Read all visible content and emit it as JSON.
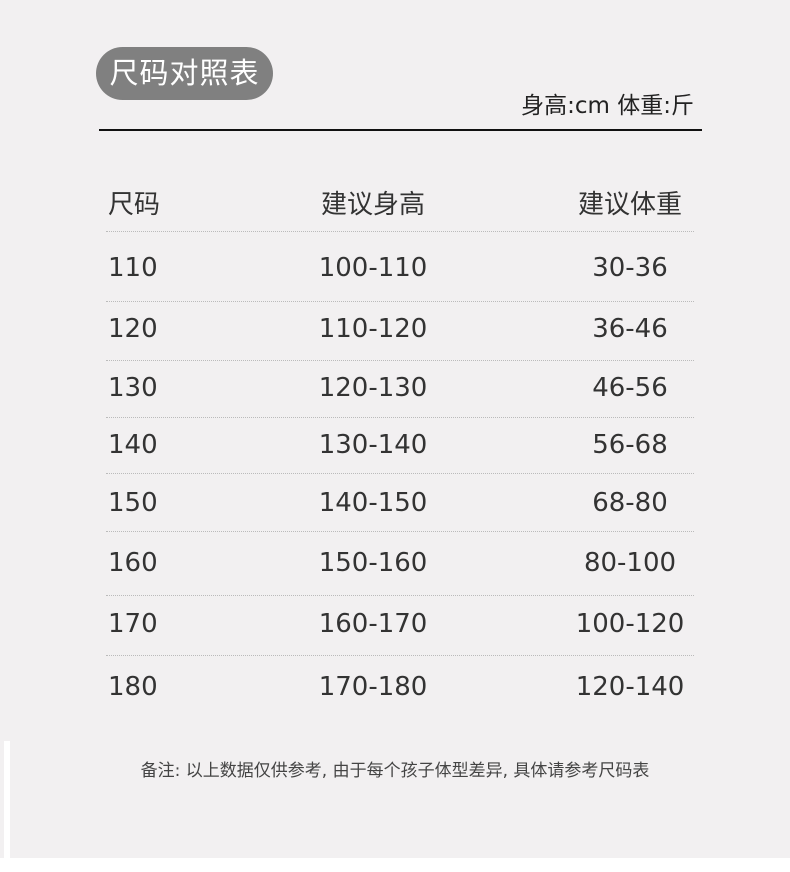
{
  "title": "尺码对照表",
  "units": "身高:cm 体重:斤",
  "table": {
    "headers": [
      "尺码",
      "建议身高",
      "建议体重"
    ],
    "rows": [
      [
        "110",
        "100-110",
        "30-36"
      ],
      [
        "120",
        "110-120",
        "36-46"
      ],
      [
        "130",
        "120-130",
        "46-56"
      ],
      [
        "140",
        "130-140",
        "56-68"
      ],
      [
        "150",
        "140-150",
        "68-80"
      ],
      [
        "160",
        "150-160",
        "80-100"
      ],
      [
        "170",
        "160-170",
        "100-120"
      ],
      [
        "180",
        "170-180",
        "120-140"
      ]
    ]
  },
  "note": "备注: 以上数据仅供参考, 由于每个孩子体型差异, 具体请参考尺码表"
}
